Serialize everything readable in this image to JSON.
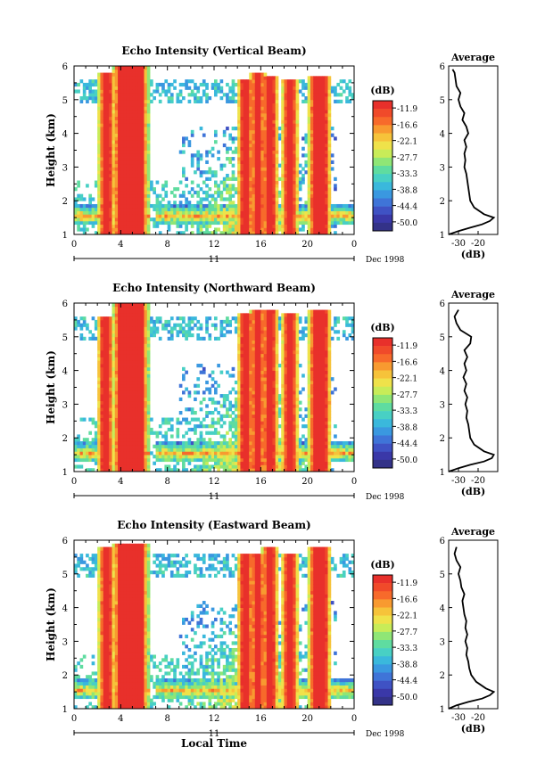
{
  "figure": {
    "xlabel": "Local Time",
    "date_label": "Dec 1998",
    "day_label": "11"
  },
  "colorbar": {
    "unit": "(dB)",
    "ticks": [
      "-11.9",
      "-16.6",
      "-22.1",
      "-27.7",
      "-33.3",
      "-38.8",
      "-44.4",
      "-50.0"
    ],
    "colors": [
      "#e8302b",
      "#f04a2a",
      "#f76a2b",
      "#f89a30",
      "#f6c33a",
      "#efe24a",
      "#c8ec58",
      "#8fe676",
      "#5fdca0",
      "#48d0c4",
      "#3ab8dc",
      "#3a98e0",
      "#3f74d8",
      "#3f52c4",
      "#3a38a8",
      "#333288"
    ]
  },
  "chart_data": [
    {
      "type": "heatmap",
      "title": "Echo Intensity (Vertical Beam)",
      "xlabel": "",
      "ylabel": "Height (km)",
      "xlim": [
        0,
        24
      ],
      "ylim": [
        1,
        6
      ],
      "x_ticks": [
        "0",
        "4",
        "8",
        "12",
        "16",
        "20",
        "0"
      ],
      "y_ticks": [
        "1",
        "2",
        "3",
        "4",
        "5",
        "6"
      ],
      "z_unit": "dB",
      "z_range": [
        -50.0,
        -11.9
      ],
      "bands": [
        {
          "t": [
            2.5,
            3.1
          ],
          "top": 5.8
        },
        {
          "t": [
            3.8,
            5.9
          ],
          "top": 6.0
        },
        {
          "t": [
            14.4,
            15.0
          ],
          "top": 5.6
        },
        {
          "t": [
            15.5,
            16.0
          ],
          "top": 5.8
        },
        {
          "t": [
            16.5,
            17.1
          ],
          "top": 5.7
        },
        {
          "t": [
            18.2,
            18.8
          ],
          "top": 5.6
        },
        {
          "t": [
            20.5,
            21.6
          ],
          "top": 5.7
        }
      ],
      "profile": {
        "title": "Average",
        "xlabel": "(dB)",
        "x_ticks": [
          "-30",
          "-20"
        ],
        "xlim": [
          -35,
          -10
        ],
        "height": [
          1.0,
          1.1,
          1.2,
          1.3,
          1.4,
          1.5,
          1.6,
          1.8,
          2.0,
          2.2,
          2.4,
          2.6,
          2.8,
          3.0,
          3.2,
          3.4,
          3.6,
          3.8,
          4.0,
          4.2,
          4.4,
          4.6,
          4.8,
          5.0,
          5.2,
          5.4,
          5.6,
          5.8,
          5.9
        ],
        "values": [
          -36,
          -30,
          -24,
          -18,
          -14,
          -12,
          -17,
          -22,
          -24,
          -24.5,
          -25,
          -25.5,
          -26,
          -27,
          -26.5,
          -27,
          -26,
          -27,
          -25,
          -26,
          -28,
          -27,
          -29,
          -30,
          -29,
          -31,
          -31.5,
          -32,
          -33
        ]
      }
    },
    {
      "type": "heatmap",
      "title": "Echo Intensity (Northward Beam)",
      "xlabel": "",
      "ylabel": "Height (km)",
      "xlim": [
        0,
        24
      ],
      "ylim": [
        1,
        6
      ],
      "x_ticks": [
        "0",
        "4",
        "8",
        "12",
        "16",
        "20",
        "0"
      ],
      "y_ticks": [
        "1",
        "2",
        "3",
        "4",
        "5",
        "6"
      ],
      "z_unit": "dB",
      "z_range": [
        -50.0,
        -11.9
      ],
      "bands": [
        {
          "t": [
            2.4,
            3.0
          ],
          "top": 5.6
        },
        {
          "t": [
            3.8,
            5.9
          ],
          "top": 6.0
        },
        {
          "t": [
            14.4,
            15.0
          ],
          "top": 5.7
        },
        {
          "t": [
            15.5,
            16.0
          ],
          "top": 5.8
        },
        {
          "t": [
            16.5,
            17.1
          ],
          "top": 5.8
        },
        {
          "t": [
            18.2,
            18.8
          ],
          "top": 5.7
        },
        {
          "t": [
            20.5,
            21.6
          ],
          "top": 5.8
        }
      ],
      "profile": {
        "title": "Average",
        "xlabel": "(dB)",
        "x_ticks": [
          "-30",
          "-20"
        ],
        "xlim": [
          -35,
          -10
        ],
        "height": [
          1.0,
          1.1,
          1.2,
          1.3,
          1.4,
          1.5,
          1.6,
          1.8,
          2.0,
          2.2,
          2.4,
          2.6,
          2.8,
          3.0,
          3.2,
          3.4,
          3.6,
          3.8,
          4.0,
          4.2,
          4.4,
          4.6,
          4.8,
          5.0,
          5.2,
          5.4,
          5.6,
          5.8
        ],
        "values": [
          -35,
          -30,
          -24,
          -17,
          -13,
          -12,
          -17,
          -22,
          -24,
          -24.5,
          -25,
          -26,
          -25.5,
          -26.5,
          -25.5,
          -27,
          -26,
          -27.5,
          -26,
          -27,
          -25.5,
          -27,
          -24,
          -23.5,
          -29,
          -31,
          -32,
          -30
        ]
      }
    },
    {
      "type": "heatmap",
      "title": "Echo Intensity (Eastward Beam)",
      "xlabel": "Local Time",
      "ylabel": "Height (km)",
      "xlim": [
        0,
        24
      ],
      "ylim": [
        1,
        6
      ],
      "x_ticks": [
        "0",
        "4",
        "8",
        "12",
        "16",
        "20",
        "0"
      ],
      "y_ticks": [
        "1",
        "2",
        "3",
        "4",
        "5",
        "6"
      ],
      "z_unit": "dB",
      "z_range": [
        -50.0,
        -11.9
      ],
      "bands": [
        {
          "t": [
            2.5,
            3.1
          ],
          "top": 5.8
        },
        {
          "t": [
            3.8,
            5.9
          ],
          "top": 5.9
        },
        {
          "t": [
            14.4,
            15.0
          ],
          "top": 5.6
        },
        {
          "t": [
            15.5,
            16.0
          ],
          "top": 5.6
        },
        {
          "t": [
            16.5,
            17.1
          ],
          "top": 5.8
        },
        {
          "t": [
            18.2,
            18.8
          ],
          "top": 5.6
        },
        {
          "t": [
            20.5,
            21.6
          ],
          "top": 5.8
        }
      ],
      "profile": {
        "title": "Average",
        "xlabel": "(dB)",
        "x_ticks": [
          "-30",
          "-20"
        ],
        "xlim": [
          -35,
          -10
        ],
        "height": [
          1.0,
          1.1,
          1.2,
          1.3,
          1.4,
          1.5,
          1.6,
          1.8,
          2.0,
          2.2,
          2.4,
          2.6,
          2.8,
          3.0,
          3.2,
          3.4,
          3.6,
          3.8,
          4.0,
          4.2,
          4.4,
          4.6,
          4.8,
          5.0,
          5.2,
          5.4,
          5.6,
          5.8
        ],
        "values": [
          -36,
          -31,
          -25,
          -18,
          -14,
          -12,
          -16,
          -21,
          -23.5,
          -24.5,
          -25,
          -26,
          -25.5,
          -26.5,
          -25.5,
          -26.5,
          -26,
          -27,
          -27.5,
          -28,
          -27,
          -28.5,
          -29,
          -30,
          -29,
          -31,
          -32,
          -31
        ]
      }
    }
  ]
}
